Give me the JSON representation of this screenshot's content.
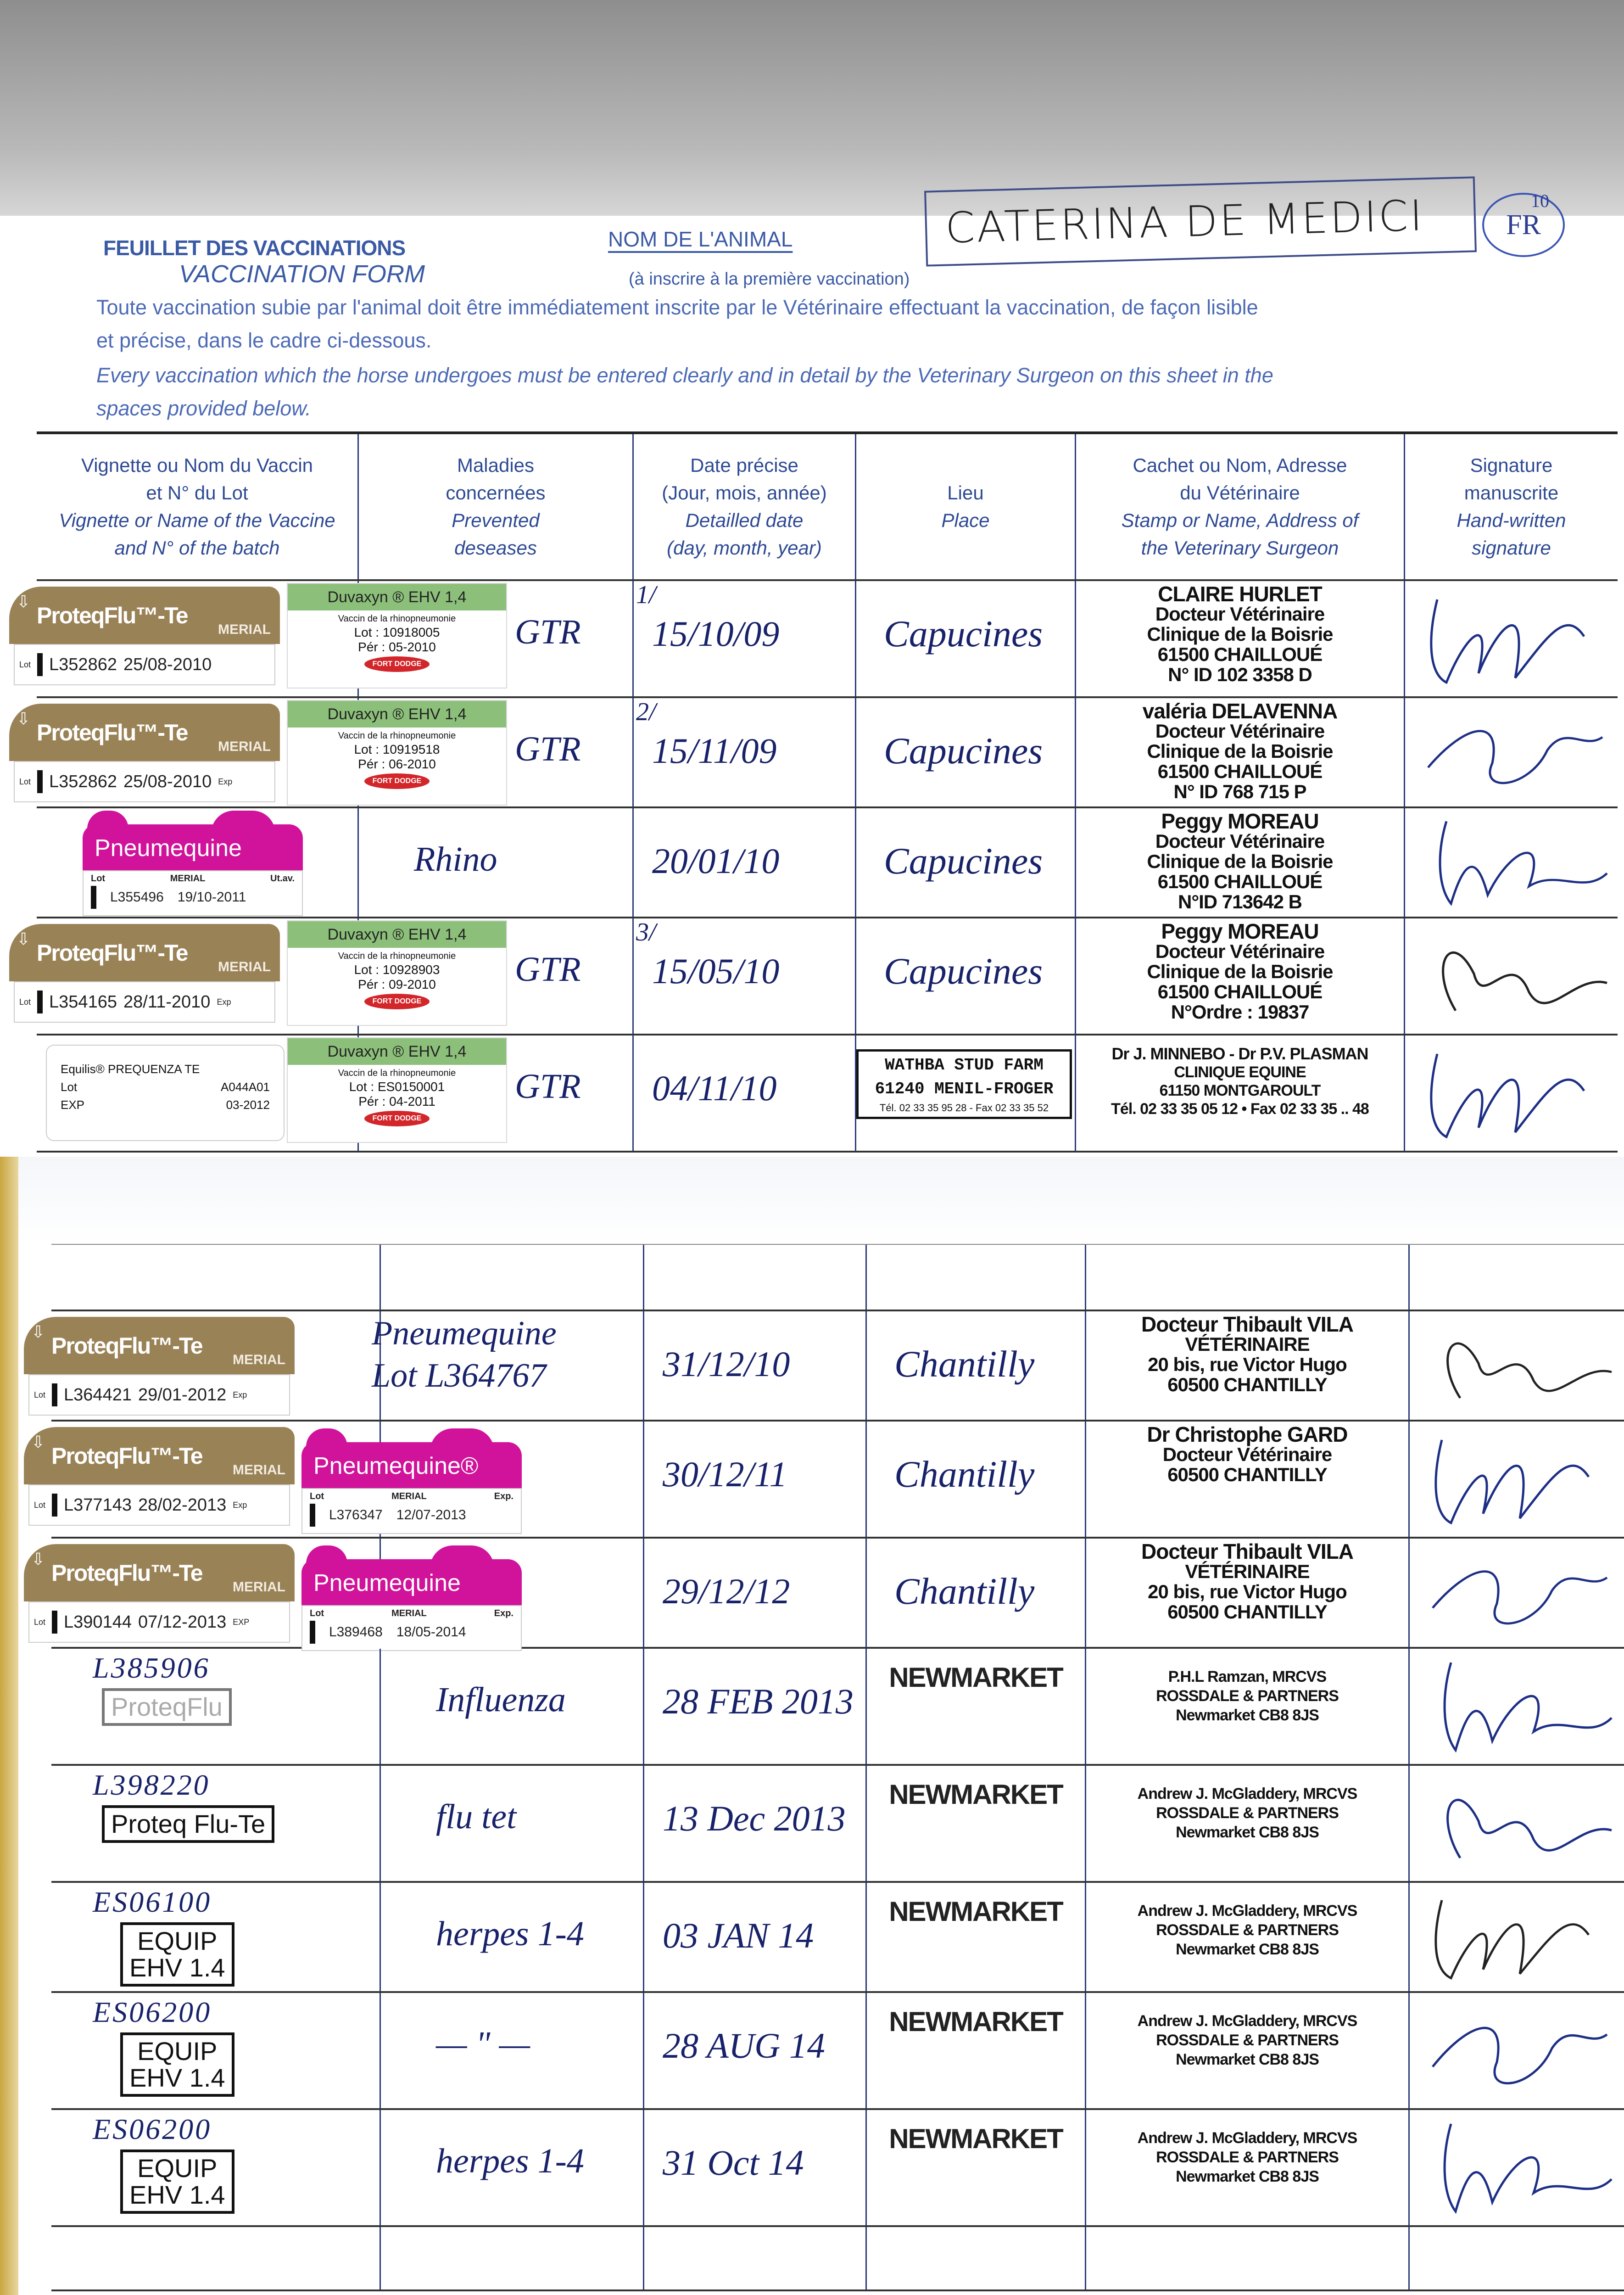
{
  "header": {
    "title_fr": "FEUILLET DES VACCINATIONS",
    "title_en": "VACCINATION FORM",
    "animal_label": "NOM DE L'ANIMAL",
    "animal_name": "CATERINA DE MEDICI",
    "name_suffix": "FR",
    "name_suffix_sup": "10",
    "animal_note": "(à inscrire à la première vaccination)",
    "instructions_fr": [
      "Toute vaccination subie par l'animal doit être immédiatement inscrite par le Vétérinaire effectuant la vaccination, de façon lisible",
      "et précise, dans le cadre ci-dessous."
    ],
    "instructions_en": [
      "Every vaccination which the horse undergoes must be entered clearly and in detail by the Veterinary Surgeon on this sheet in the",
      "spaces provided below."
    ]
  },
  "columns": [
    {
      "fr": [
        "Vignette ou Nom du Vaccin",
        "et N° du Lot"
      ],
      "en": [
        "Vignette or Name of the Vaccine",
        "and N° of the batch"
      ]
    },
    {
      "fr": [
        "Maladies",
        "concernées"
      ],
      "en": [
        "Prevented",
        "deseases"
      ]
    },
    {
      "fr": [
        "Date précise",
        "(Jour, mois, année)"
      ],
      "en": [
        "Detailled date",
        "(day, month, year)"
      ]
    },
    {
      "fr": [
        "Lieu"
      ],
      "en": [
        "Place"
      ]
    },
    {
      "fr": [
        "Cachet ou Nom, Adresse",
        "du Vétérinaire"
      ],
      "en": [
        "Stamp or Name, Address of",
        "the Veterinary Surgeon"
      ]
    },
    {
      "fr": [
        "Signature",
        "manuscrite"
      ],
      "en": [
        "Hand-written",
        "signature"
      ]
    }
  ],
  "colors": {
    "form_blue": "#2e4a94",
    "ink_blue": "#18226a",
    "proteqflu_brown": "#9a8257",
    "pneumequine_magenta": "#d0139a",
    "duvaxyn_green": "#8cc07a",
    "fort_dodge_red": "#d3262b"
  },
  "page1": {
    "rows": [
      {
        "vaccines": [
          {
            "kind": "proteqflu",
            "brand": "ProteqFlu™-Te",
            "maker": "MERIAL",
            "lot_label": "Lot",
            "lot": "L352862",
            "exp": "25/08-2010",
            "exp_label": ""
          },
          {
            "kind": "duvaxyn",
            "name": "Duvaxyn ® EHV 1,4",
            "desc": "Vaccin de la rhinopneumonie",
            "lot": "Lot : 10918005",
            "per": "Pér : 05-2010",
            "maker": "FORT DODGE"
          }
        ],
        "disease": "GTR",
        "date_index": "1/",
        "date": "15/10/09",
        "place": "Capucines",
        "vet": [
          "CLAIRE HURLET",
          "Docteur Vétérinaire",
          "Clinique de la Boisrie",
          "61500 CHAILLOUÉ",
          "N° ID 102 3358 D"
        ]
      },
      {
        "vaccines": [
          {
            "kind": "proteqflu",
            "brand": "ProteqFlu™-Te",
            "maker": "MERIAL",
            "lot_label": "Lot",
            "lot": "L352862",
            "exp": "25/08-2010",
            "exp_label": "Exp"
          },
          {
            "kind": "duvaxyn",
            "name": "Duvaxyn ® EHV 1,4",
            "desc": "Vaccin de la rhinopneumonie",
            "lot": "Lot : 10919518",
            "per": "Pér : 06-2010",
            "maker": "FORT DODGE"
          }
        ],
        "disease": "GTR",
        "date_index": "2/",
        "date": "15/11/09",
        "place": "Capucines",
        "vet": [
          "valéria DELAVENNA",
          "Docteur Vétérinaire",
          "Clinique de la Boisrie",
          "61500 CHAILLOUÉ",
          "N° ID 768 715 P"
        ]
      },
      {
        "vaccines": [
          {
            "kind": "pneumequine",
            "brand": "Pneumequine",
            "maker": "MERIAL",
            "lot_label": "Lot",
            "exp_label": "Ut.av.",
            "lot": "L355496",
            "exp": "19/10-2011"
          }
        ],
        "disease": "Rhino",
        "date_index": "",
        "date": "20/01/10",
        "place": "Capucines",
        "vet": [
          "Peggy MOREAU",
          "Docteur Vétérinaire",
          "Clinique de la Boisrie",
          "61500 CHAILLOUÉ",
          "N°ID 713642 B"
        ]
      },
      {
        "vaccines": [
          {
            "kind": "proteqflu",
            "brand": "ProteqFlu™-Te",
            "maker": "MERIAL",
            "lot_label": "Lot",
            "lot": "L354165",
            "exp": "28/11-2010",
            "exp_label": "Exp"
          },
          {
            "kind": "duvaxyn",
            "name": "Duvaxyn ® EHV 1,4",
            "desc": "Vaccin de la rhinopneumonie",
            "lot": "Lot : 10928903",
            "per": "Pér : 09-2010",
            "maker": "FORT DODGE"
          }
        ],
        "disease": "GTR",
        "date_index": "3/",
        "date": "15/05/10",
        "place": "Capucines",
        "vet": [
          "Peggy MOREAU",
          "Docteur Vétérinaire",
          "Clinique de la Boisrie",
          "61500 CHAILLOUÉ",
          "N°Ordre : 19837"
        ]
      },
      {
        "vaccines": [
          {
            "kind": "equilis",
            "brand": "Equilis® PREQUENZA TE",
            "lot_label": "Lot",
            "lot": "A044A01",
            "exp_label": "EXP",
            "exp": "03-2012"
          },
          {
            "kind": "duvaxyn",
            "name": "Duvaxyn ® EHV 1,4",
            "desc": "Vaccin de la rhinopneumonie",
            "lot": "Lot : ES0150001",
            "per": "Pér : 04-2011",
            "maker": "FORT DODGE"
          }
        ],
        "disease": "GTR",
        "date_index": "",
        "date": "04/11/10",
        "place": "",
        "place_stamp": [
          "WATHBA STUD FARM",
          "61240 MENIL-FROGER",
          "Tél. 02 33 35 95 28 - Fax 02 33 35 52"
        ],
        "vet": [
          "Dr J. MINNEBO - Dr P.V. PLASMAN",
          "CLINIQUE EQUINE",
          "61150 MONTGAROULT",
          "Tél. 02 33 35 05 12 • Fax 02 33 35 .. 48"
        ]
      }
    ]
  },
  "page2": {
    "rows": [
      {
        "vaccines": [],
        "disease": "",
        "date": "",
        "place": "",
        "vet": []
      },
      {
        "vaccines": [
          {
            "kind": "proteqflu",
            "brand": "ProteqFlu™-Te",
            "maker": "MERIAL",
            "lot_label": "Lot",
            "lot": "L364421",
            "exp": "29/01-2012",
            "exp_label": "Exp"
          }
        ],
        "disease": "Pneumequine",
        "disease_2": "Lot L364767",
        "date": "31/12/10",
        "place": "Chantilly",
        "vet": [
          "Docteur Thibault VILA",
          "VÉTÉRINAIRE",
          "20 bis, rue Victor Hugo",
          "60500 CHANTILLY"
        ]
      },
      {
        "vaccines": [
          {
            "kind": "proteqflu",
            "brand": "ProteqFlu™-Te",
            "maker": "MERIAL",
            "lot_label": "Lot",
            "lot": "L377143",
            "exp": "28/02-2013",
            "exp_label": "Exp"
          },
          {
            "kind": "pneumequine",
            "brand": "Pneumequine®",
            "maker": "MERIAL",
            "lot_label": "Lot",
            "exp_label": "Exp.",
            "lot": "L376347",
            "exp": "12/07-2013"
          }
        ],
        "disease": "",
        "date": "30/12/11",
        "place": "Chantilly",
        "vet": [
          "Dr Christophe GARD",
          "Docteur Vétérinaire",
          "60500 CHANTILLY"
        ]
      },
      {
        "vaccines": [
          {
            "kind": "proteqflu",
            "brand": "ProteqFlu™-Te",
            "maker": "MERIAL",
            "lot_label": "Lot",
            "lot": "L390144",
            "exp": "07/12-2013",
            "exp_label": "EXP"
          },
          {
            "kind": "pneumequine",
            "brand": "Pneumequine",
            "maker": "MERIAL",
            "lot_label": "Lot",
            "exp_label": "Exp.",
            "lot": "L389468",
            "exp": "18/05-2014"
          }
        ],
        "disease": "",
        "date": "29/12/12",
        "place": "Chantilly",
        "vet": [
          "Docteur Thibault VILA",
          "VÉTÉRINAIRE",
          "20 bis, rue Victor Hugo",
          "60500 CHANTILLY"
        ]
      },
      {
        "vaccines": [
          {
            "kind": "handwritten",
            "batch": "L385906",
            "stamp": [
              "ProteqFlu"
            ],
            "faded": true
          }
        ],
        "disease": "Influenza",
        "date": "28 FEB 2013",
        "place_print": "NEWMARKET",
        "vet": [
          "P.H.L Ramzan, MRCVS",
          "ROSSDALE & PARTNERS",
          "Newmarket CB8 8JS"
        ]
      },
      {
        "vaccines": [
          {
            "kind": "handwritten",
            "batch": "L398220",
            "stamp": [
              "Proteq Flu-Te"
            ]
          }
        ],
        "disease": "flu tet",
        "date": "13 Dec 2013",
        "place_print": "NEWMARKET",
        "vet": [
          "Andrew J. McGladdery, MRCVS",
          "ROSSDALE & PARTNERS",
          "Newmarket CB8 8JS"
        ]
      },
      {
        "vaccines": [
          {
            "kind": "handwritten",
            "batch": "ES06100",
            "stamp": [
              "EQUIP",
              "EHV 1.4"
            ]
          }
        ],
        "disease": "herpes 1-4",
        "date": "03 JAN 14",
        "place_print": "NEWMARKET",
        "vet": [
          "Andrew J. McGladdery, MRCVS",
          "ROSSDALE & PARTNERS",
          "Newmarket CB8 8JS"
        ]
      },
      {
        "vaccines": [
          {
            "kind": "handwritten",
            "batch": "ES06200",
            "stamp": [
              "EQUIP",
              "EHV 1.4"
            ]
          }
        ],
        "disease": "— \" —",
        "date": "28 AUG 14",
        "place_print": "NEWMARKET",
        "vet": [
          "Andrew J. McGladdery, MRCVS",
          "ROSSDALE & PARTNERS",
          "Newmarket CB8 8JS"
        ]
      },
      {
        "vaccines": [
          {
            "kind": "handwritten",
            "batch": "ES06200",
            "stamp": [
              "EQUIP",
              "EHV 1.4"
            ]
          }
        ],
        "disease": "herpes 1-4",
        "date": "31 Oct 14",
        "place_print": "NEWMARKET",
        "vet": [
          "Andrew J. McGladdery, MRCVS",
          "ROSSDALE & PARTNERS",
          "Newmarket CB8 8JS"
        ]
      },
      {
        "vaccines": [],
        "disease": "",
        "date": "",
        "place": "",
        "vet": []
      }
    ]
  }
}
